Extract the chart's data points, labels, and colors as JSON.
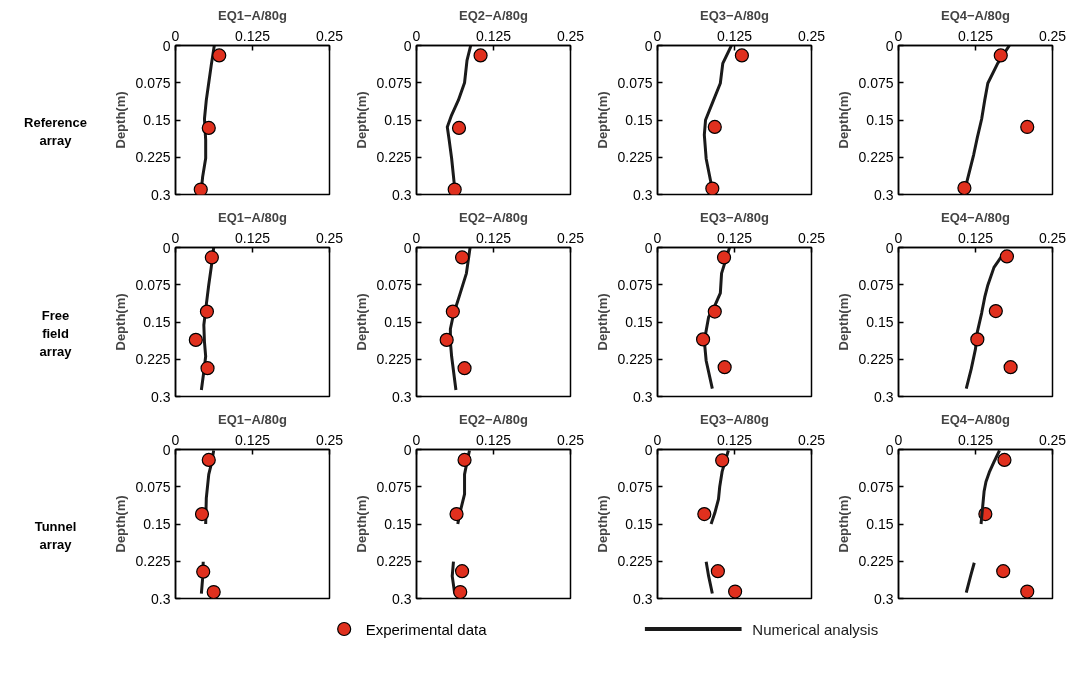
{
  "chart_data": [
    {
      "type": "line",
      "title": "EQ1−A/80g",
      "ylabel": "Depth(m)",
      "annotations": [
        "Reference array"
      ],
      "xlim": [
        0,
        0.25
      ],
      "xticks": [
        0,
        0.125,
        0.25
      ],
      "ylim": [
        0.3,
        0
      ],
      "yticks": [
        0,
        0.075,
        0.15,
        0.225,
        0.3
      ],
      "series": [
        {
          "color": "#1a1a1a",
          "x": [
            0.063,
            0.058,
            0.054,
            0.05,
            0.047,
            0.049,
            0.049,
            0.044,
            0.042
          ],
          "values": [
            0,
            0.04,
            0.075,
            0.11,
            0.148,
            0.19,
            0.227,
            0.265,
            0.29
          ]
        },
        {
          "type": "scatter",
          "marker": "circle",
          "color": "#e0301e",
          "x": [
            0.071,
            0.054,
            0.041
          ],
          "values": [
            0.02,
            0.166,
            0.29
          ]
        }
      ]
    },
    {
      "type": "line",
      "title": "EQ2−A/80g",
      "ylabel": "Depth(m)",
      "xlim": [
        0,
        0.25
      ],
      "xticks": [
        0,
        0.125,
        0.25
      ],
      "ylim": [
        0.3,
        0
      ],
      "yticks": [
        0,
        0.075,
        0.15,
        0.225,
        0.3
      ],
      "series": [
        {
          "color": "#1a1a1a",
          "x": [
            0.088,
            0.082,
            0.078,
            0.068,
            0.057,
            0.05,
            0.053,
            0.057,
            0.062
          ],
          "values": [
            0,
            0.03,
            0.075,
            0.11,
            0.14,
            0.164,
            0.19,
            0.227,
            0.287
          ]
        },
        {
          "type": "scatter",
          "marker": "circle",
          "color": "#e0301e",
          "x": [
            0.104,
            0.069,
            0.062
          ],
          "values": [
            0.02,
            0.166,
            0.29
          ]
        }
      ]
    },
    {
      "type": "line",
      "title": "EQ3−A/80g",
      "ylabel": "Depth(m)",
      "xlim": [
        0,
        0.25
      ],
      "xticks": [
        0,
        0.125,
        0.25
      ],
      "ylim": [
        0.3,
        0
      ],
      "yticks": [
        0,
        0.075,
        0.15,
        0.225,
        0.3
      ],
      "series": [
        {
          "color": "#1a1a1a",
          "x": [
            0.12,
            0.106,
            0.102,
            0.089,
            0.078,
            0.076,
            0.079,
            0.088
          ],
          "values": [
            0,
            0.036,
            0.076,
            0.116,
            0.15,
            0.18,
            0.228,
            0.284
          ]
        },
        {
          "type": "scatter",
          "marker": "circle",
          "color": "#e0301e",
          "x": [
            0.137,
            0.093,
            0.089
          ],
          "values": [
            0.02,
            0.164,
            0.288
          ]
        }
      ]
    },
    {
      "type": "line",
      "title": "EQ4−A/80g",
      "ylabel": "Depth(m)",
      "xlim": [
        0,
        0.25
      ],
      "xticks": [
        0,
        0.125,
        0.25
      ],
      "ylim": [
        0.3,
        0
      ],
      "yticks": [
        0,
        0.075,
        0.15,
        0.225,
        0.3
      ],
      "series": [
        {
          "color": "#1a1a1a",
          "x": [
            0.18,
            0.161,
            0.145,
            0.14,
            0.135,
            0.128,
            0.122,
            0.109
          ],
          "values": [
            0,
            0.036,
            0.076,
            0.11,
            0.148,
            0.185,
            0.22,
            0.284
          ]
        },
        {
          "type": "scatter",
          "marker": "circle",
          "color": "#e0301e",
          "x": [
            0.166,
            0.209,
            0.107
          ],
          "values": [
            0.02,
            0.164,
            0.287
          ]
        }
      ]
    },
    {
      "type": "line",
      "title": "EQ1−A/80g",
      "ylabel": "Depth(m)",
      "annotations": [
        "Free field array"
      ],
      "xlim": [
        0,
        0.25
      ],
      "xticks": [
        0,
        0.125,
        0.25
      ],
      "ylim": [
        0.3,
        0
      ],
      "yticks": [
        0,
        0.075,
        0.15,
        0.225,
        0.3
      ],
      "series": [
        {
          "color": "#1a1a1a",
          "x": [
            0.062,
            0.058,
            0.054,
            0.05,
            0.046,
            0.047,
            0.049,
            0.046,
            0.042
          ],
          "values": [
            0,
            0.04,
            0.075,
            0.115,
            0.156,
            0.19,
            0.219,
            0.25,
            0.287
          ]
        },
        {
          "type": "scatter",
          "marker": "circle",
          "color": "#e0301e",
          "x": [
            0.059,
            0.051,
            0.033,
            0.052
          ],
          "values": [
            0.02,
            0.129,
            0.186,
            0.243
          ]
        }
      ]
    },
    {
      "type": "line",
      "title": "EQ2−A/80g",
      "ylabel": "Depth(m)",
      "xlim": [
        0,
        0.25
      ],
      "xticks": [
        0,
        0.125,
        0.25
      ],
      "ylim": [
        0.3,
        0
      ],
      "yticks": [
        0,
        0.075,
        0.15,
        0.225,
        0.3
      ],
      "series": [
        {
          "color": "#1a1a1a",
          "x": [
            0.087,
            0.081,
            0.069,
            0.06,
            0.055,
            0.055,
            0.057,
            0.064
          ],
          "values": [
            0,
            0.052,
            0.1,
            0.135,
            0.164,
            0.19,
            0.219,
            0.287
          ]
        },
        {
          "type": "scatter",
          "marker": "circle",
          "color": "#e0301e",
          "x": [
            0.074,
            0.059,
            0.049,
            0.078
          ],
          "values": [
            0.02,
            0.129,
            0.186,
            0.243
          ]
        }
      ]
    },
    {
      "type": "line",
      "title": "EQ3−A/80g",
      "ylabel": "Depth(m)",
      "xlim": [
        0,
        0.25
      ],
      "xticks": [
        0,
        0.125,
        0.25
      ],
      "ylim": [
        0.3,
        0
      ],
      "yticks": [
        0,
        0.075,
        0.15,
        0.225,
        0.3
      ],
      "series": [
        {
          "color": "#1a1a1a",
          "x": [
            0.117,
            0.104,
            0.102,
            0.092,
            0.083,
            0.076,
            0.079,
            0.089
          ],
          "values": [
            0,
            0.052,
            0.092,
            0.12,
            0.14,
            0.188,
            0.228,
            0.284
          ]
        },
        {
          "type": "scatter",
          "marker": "circle",
          "color": "#e0301e",
          "x": [
            0.108,
            0.093,
            0.074,
            0.109
          ],
          "values": [
            0.02,
            0.129,
            0.185,
            0.241
          ]
        }
      ]
    },
    {
      "type": "line",
      "title": "EQ4−A/80g",
      "ylabel": "Depth(m)",
      "xlim": [
        0,
        0.25
      ],
      "xticks": [
        0,
        0.125,
        0.25
      ],
      "ylim": [
        0.3,
        0
      ],
      "yticks": [
        0,
        0.075,
        0.15,
        0.225,
        0.3
      ],
      "series": [
        {
          "color": "#1a1a1a",
          "x": [
            0.174,
            0.155,
            0.145,
            0.14,
            0.135,
            0.128,
            0.125,
            0.118,
            0.11
          ],
          "values": [
            0.006,
            0.04,
            0.076,
            0.1,
            0.132,
            0.17,
            0.204,
            0.245,
            0.284
          ]
        },
        {
          "type": "scatter",
          "marker": "circle",
          "color": "#e0301e",
          "x": [
            0.176,
            0.158,
            0.128,
            0.182
          ],
          "values": [
            0.018,
            0.128,
            0.185,
            0.241
          ]
        }
      ]
    },
    {
      "type": "line",
      "title": "EQ1−A/80g",
      "ylabel": "Depth(m)",
      "annotations": [
        "Tunnel array"
      ],
      "xlim": [
        0,
        0.25
      ],
      "xticks": [
        0,
        0.125,
        0.25
      ],
      "ylim": [
        0.3,
        0
      ],
      "yticks": [
        0,
        0.075,
        0.15,
        0.225,
        0.3
      ],
      "series": [
        {
          "color": "#1a1a1a",
          "x": [
            0.062,
            0.058,
            0.054,
            0.05,
            0.049,
            null,
            0.045,
            0.044,
            0.042
          ],
          "values": [
            0.002,
            0.03,
            0.05,
            0.098,
            0.15,
            null,
            0.226,
            0.26,
            0.29
          ]
        },
        {
          "type": "scatter",
          "marker": "circle",
          "color": "#e0301e",
          "x": [
            0.054,
            0.043,
            0.045,
            0.062
          ],
          "values": [
            0.021,
            0.13,
            0.246,
            0.287
          ]
        }
      ]
    },
    {
      "type": "line",
      "title": "EQ2−A/80g",
      "ylabel": "Depth(m)",
      "xlim": [
        0,
        0.25
      ],
      "xticks": [
        0,
        0.125,
        0.25
      ],
      "ylim": [
        0.3,
        0
      ],
      "yticks": [
        0,
        0.075,
        0.15,
        0.225,
        0.3
      ],
      "series": [
        {
          "color": "#1a1a1a",
          "x": [
            0.086,
            0.082,
            0.078,
            0.078,
            0.072,
            0.067,
            null,
            0.06,
            0.058,
            0.062
          ],
          "values": [
            0.002,
            0.025,
            0.05,
            0.09,
            0.12,
            0.15,
            null,
            0.226,
            0.255,
            0.29
          ]
        },
        {
          "type": "scatter",
          "marker": "circle",
          "color": "#e0301e",
          "x": [
            0.078,
            0.065,
            0.074,
            0.071
          ],
          "values": [
            0.021,
            0.13,
            0.245,
            0.287
          ]
        }
      ]
    },
    {
      "type": "line",
      "title": "EQ3−A/80g",
      "ylabel": "Depth(m)",
      "xlim": [
        0,
        0.25
      ],
      "xticks": [
        0,
        0.125,
        0.25
      ],
      "ylim": [
        0.3,
        0
      ],
      "yticks": [
        0,
        0.075,
        0.15,
        0.225,
        0.3
      ],
      "series": [
        {
          "color": "#1a1a1a",
          "x": [
            0.115,
            0.105,
            0.101,
            0.099,
            0.093,
            0.087,
            null,
            0.079,
            0.083,
            0.089
          ],
          "values": [
            0.002,
            0.044,
            0.075,
            0.1,
            0.128,
            0.15,
            null,
            0.226,
            0.255,
            0.29
          ]
        },
        {
          "type": "scatter",
          "marker": "circle",
          "color": "#e0301e",
          "x": [
            0.105,
            0.076,
            0.098,
            0.126
          ],
          "values": [
            0.022,
            0.13,
            0.245,
            0.286
          ]
        }
      ]
    },
    {
      "type": "line",
      "title": "EQ4−A/80g",
      "ylabel": "Depth(m)",
      "legend": "bottom",
      "xlim": [
        0,
        0.25
      ],
      "xticks": [
        0,
        0.125,
        0.25
      ],
      "ylim": [
        0.3,
        0
      ],
      "yticks": [
        0,
        0.075,
        0.15,
        0.225,
        0.3
      ],
      "series": [
        {
          "type": "scatter",
          "name": "Experimental data",
          "marker": "circle",
          "color": "#e0301e",
          "x": [
            0.172,
            0.141,
            0.17,
            0.209
          ],
          "values": [
            0.021,
            0.13,
            0.245,
            0.286
          ]
        },
        {
          "name": "Numerical analysis",
          "color": "#1a1a1a",
          "x": [
            0.164,
            0.155,
            0.148,
            0.142,
            0.139,
            0.134,
            null,
            0.123,
            0.117,
            0.11
          ],
          "values": [
            0.002,
            0.025,
            0.044,
            0.065,
            0.084,
            0.15,
            null,
            0.228,
            0.255,
            0.288
          ]
        }
      ]
    }
  ]
}
